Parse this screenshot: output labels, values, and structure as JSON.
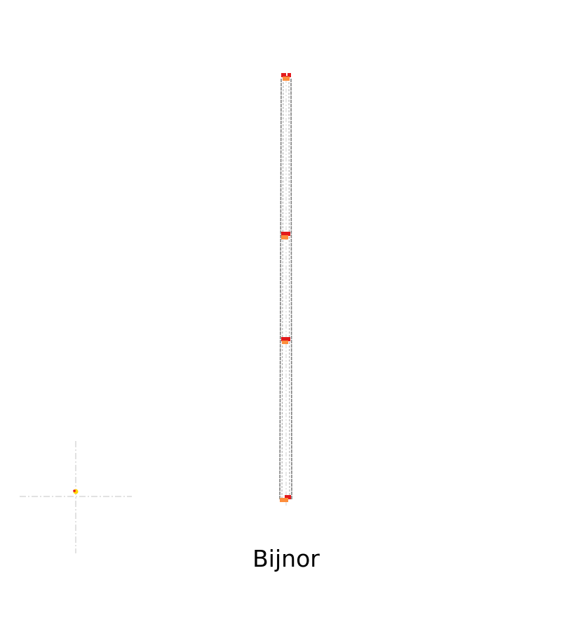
{
  "map": {
    "title": "Bijnor",
    "colors": {
      "background": "#ffffff",
      "route_outline": "#7f7f7f",
      "centerline": "#d9d9d9",
      "marker_red": "#e31a1c",
      "marker_orange": "#fd8d3c",
      "marker_yellow": "#ffd700",
      "crosshair": "#d9d9d9"
    },
    "icons": {
      "station_marker": "station-marker-icon",
      "location_marker": "location-marker-icon",
      "crosshair": "crosshair-icon"
    }
  }
}
